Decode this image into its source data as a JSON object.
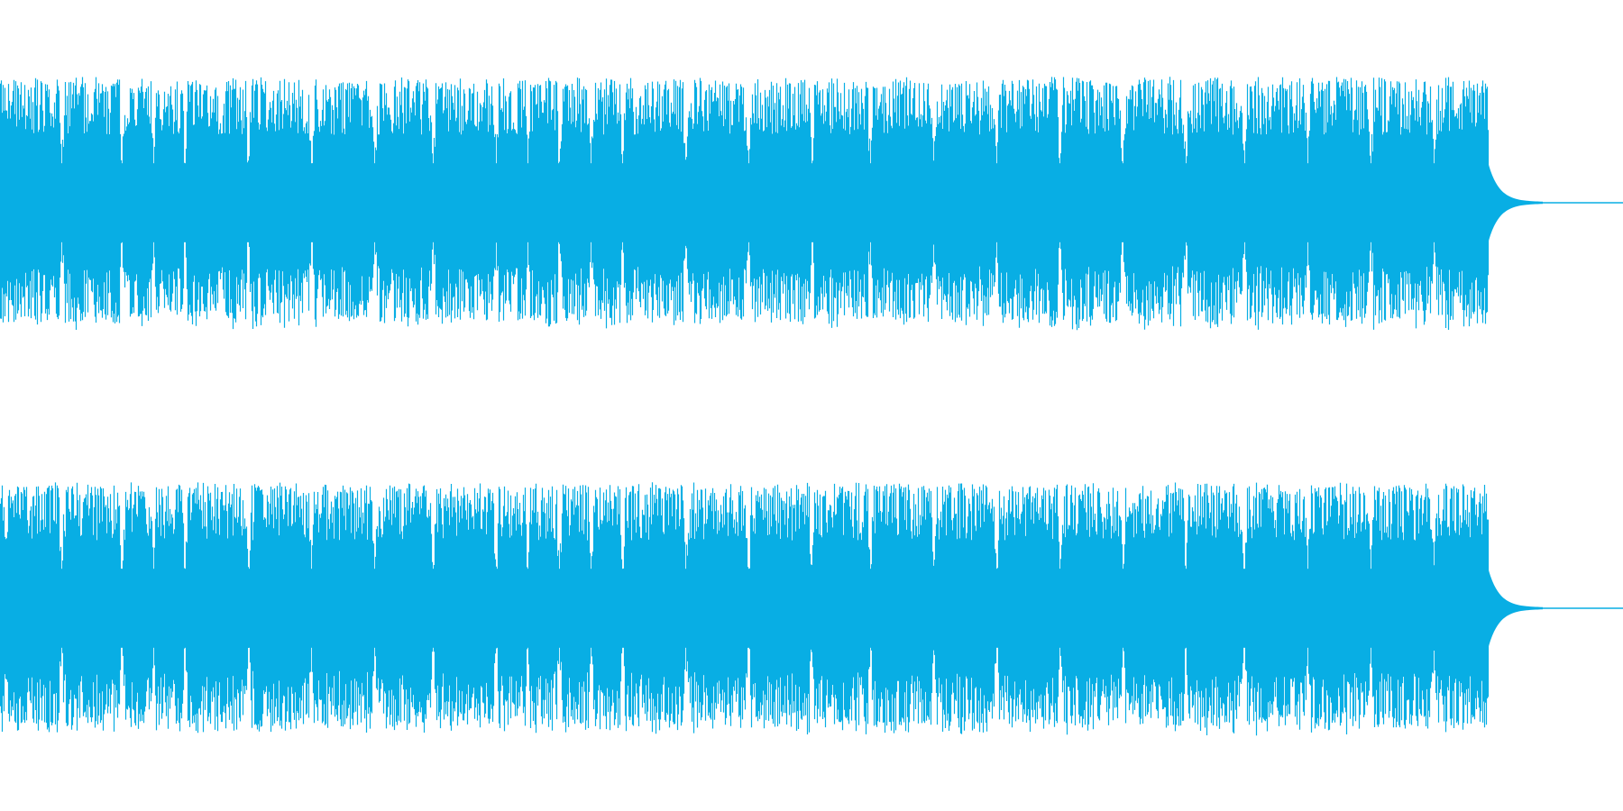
{
  "waveform": {
    "color": "#08aee4",
    "background": "#ffffff",
    "channels": [
      "channel-1",
      "channel-2"
    ],
    "active_fraction": 0.917
  }
}
